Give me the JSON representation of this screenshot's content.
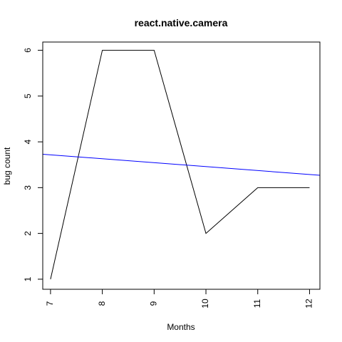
{
  "chart_data": {
    "type": "line",
    "title": "react.native.camera",
    "xlabel": "Months",
    "ylabel": "bug count",
    "xlim": [
      6.85,
      12.2
    ],
    "ylim": [
      0.78,
      6.18
    ],
    "x_ticks": [
      "7",
      "8",
      "9",
      "10",
      "11",
      "12"
    ],
    "y_ticks": [
      "1",
      "2",
      "3",
      "4",
      "5",
      "6"
    ],
    "grid": false,
    "series": [
      {
        "color": "#000000",
        "x": [
          7,
          8,
          9,
          10,
          11,
          12
        ],
        "y": [
          1,
          6,
          6,
          2,
          3,
          3
        ]
      },
      {
        "kind": "trend-line",
        "color": "#0000ff",
        "x": [
          6.85,
          12.2
        ],
        "y": [
          3.73,
          3.27
        ]
      }
    ]
  }
}
